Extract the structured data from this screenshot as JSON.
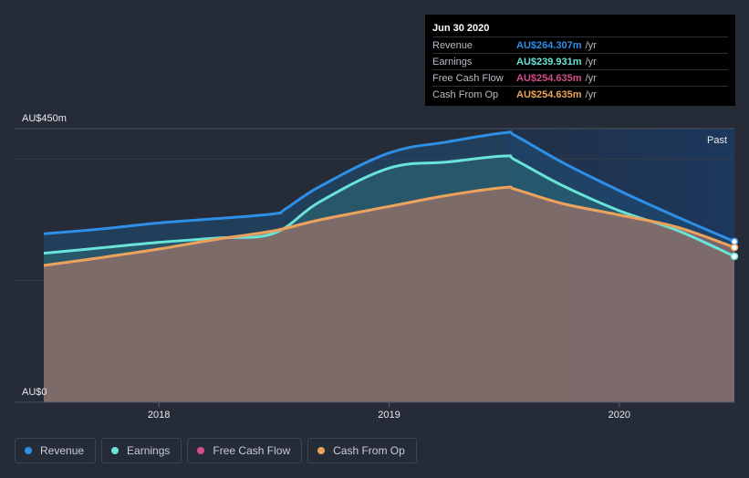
{
  "tooltip": {
    "date": "Jun 30 2020",
    "rows": [
      {
        "label": "Revenue",
        "value": "AU$264.307m",
        "unit": "/yr",
        "color": "#2e8fe6"
      },
      {
        "label": "Earnings",
        "value": "AU$239.931m",
        "unit": "/yr",
        "color": "#6ae3d8"
      },
      {
        "label": "Free Cash Flow",
        "value": "AU$254.635m",
        "unit": "/yr",
        "color": "#d44d8c"
      },
      {
        "label": "Cash From Op",
        "value": "AU$254.635m",
        "unit": "/yr",
        "color": "#e8a45b"
      }
    ]
  },
  "legend": [
    {
      "label": "Revenue",
      "color": "#2e8fe6"
    },
    {
      "label": "Earnings",
      "color": "#6ae3d8"
    },
    {
      "label": "Free Cash Flow",
      "color": "#d44d8c"
    },
    {
      "label": "Cash From Op",
      "color": "#e8a45b"
    }
  ],
  "chart_data": {
    "type": "area",
    "y_top_label": "AU$450m",
    "y_bottom_label": "AU$0",
    "past_label": "Past",
    "ylim": [
      0,
      450
    ],
    "xlim": [
      2017.5,
      2020.5
    ],
    "x_ticks": [
      {
        "value": 2018,
        "label": "2018"
      },
      {
        "value": 2019,
        "label": "2019"
      },
      {
        "value": 2020,
        "label": "2020"
      }
    ],
    "series": [
      {
        "name": "Revenue",
        "color": "#2e8fe6",
        "points": [
          [
            2017.5,
            277
          ],
          [
            2017.75,
            285
          ],
          [
            2018.0,
            295
          ],
          [
            2018.25,
            302
          ],
          [
            2018.5,
            310
          ],
          [
            2018.55,
            318
          ],
          [
            2018.7,
            355
          ],
          [
            2019.0,
            410
          ],
          [
            2019.25,
            428
          ],
          [
            2019.5,
            443
          ],
          [
            2019.55,
            438
          ],
          [
            2019.75,
            395
          ],
          [
            2020.0,
            348
          ],
          [
            2020.25,
            305
          ],
          [
            2020.5,
            264.307
          ]
        ]
      },
      {
        "name": "Earnings",
        "color": "#6ae3d8",
        "points": [
          [
            2017.5,
            245
          ],
          [
            2017.75,
            254
          ],
          [
            2018.0,
            263
          ],
          [
            2018.25,
            270
          ],
          [
            2018.5,
            278
          ],
          [
            2018.7,
            330
          ],
          [
            2019.0,
            385
          ],
          [
            2019.25,
            395
          ],
          [
            2019.5,
            405
          ],
          [
            2019.55,
            398
          ],
          [
            2019.75,
            357
          ],
          [
            2020.0,
            315
          ],
          [
            2020.25,
            283
          ],
          [
            2020.5,
            239.931
          ]
        ]
      },
      {
        "name": "Free Cash Flow",
        "color": "#d44d8c",
        "points": [
          [
            2017.5,
            225
          ],
          [
            2017.75,
            238
          ],
          [
            2018.0,
            252
          ],
          [
            2018.25,
            268
          ],
          [
            2018.5,
            282
          ],
          [
            2018.7,
            300
          ],
          [
            2019.0,
            322
          ],
          [
            2019.25,
            340
          ],
          [
            2019.5,
            353
          ],
          [
            2019.55,
            350
          ],
          [
            2019.75,
            327
          ],
          [
            2020.0,
            308
          ],
          [
            2020.25,
            288
          ],
          [
            2020.5,
            254.635
          ]
        ]
      },
      {
        "name": "Cash From Op",
        "color": "#e8a45b",
        "points": [
          [
            2017.5,
            225
          ],
          [
            2017.75,
            238
          ],
          [
            2018.0,
            252
          ],
          [
            2018.25,
            268
          ],
          [
            2018.5,
            282
          ],
          [
            2018.7,
            300
          ],
          [
            2019.0,
            322
          ],
          [
            2019.25,
            340
          ],
          [
            2019.5,
            353
          ],
          [
            2019.55,
            350
          ],
          [
            2019.75,
            327
          ],
          [
            2020.0,
            308
          ],
          [
            2020.25,
            288
          ],
          [
            2020.5,
            254.635
          ]
        ]
      }
    ]
  }
}
